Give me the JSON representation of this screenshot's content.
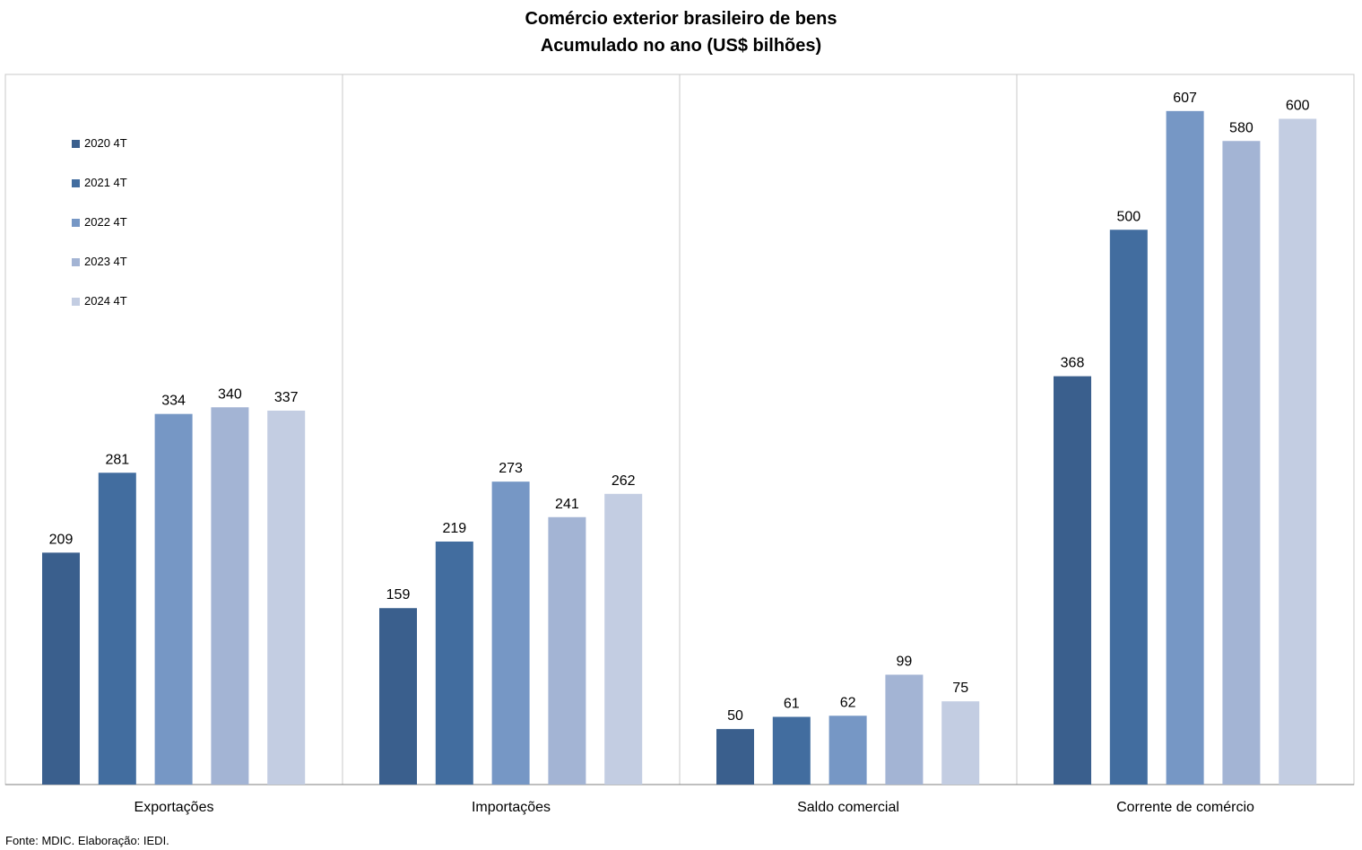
{
  "chart_data": {
    "type": "bar",
    "title": "Comércio exterior brasileiro de bens",
    "subtitle": "Acumulado no ano (US$ bilhões)",
    "categories": [
      "Exportações",
      "Importações",
      "Saldo comercial",
      "Corrente de comércio"
    ],
    "series": [
      {
        "name": "2020 4T",
        "color": "#3a5f8d",
        "values": [
          209,
          159,
          50,
          368
        ]
      },
      {
        "name": "2021 4T",
        "color": "#426d9f",
        "values": [
          281,
          219,
          61,
          500
        ]
      },
      {
        "name": "2022 4T",
        "color": "#7697c5",
        "values": [
          334,
          273,
          62,
          607
        ]
      },
      {
        "name": "2023 4T",
        "color": "#a3b4d4",
        "values": [
          340,
          241,
          99,
          580
        ]
      },
      {
        "name": "2024 4T",
        "color": "#c3cde2",
        "values": [
          337,
          262,
          75,
          600
        ]
      }
    ],
    "ylim": [
      0,
      640
    ],
    "grid": false,
    "legend_position": "top-left",
    "source": "Fonte: MDIC. Elaboração: IEDI."
  }
}
